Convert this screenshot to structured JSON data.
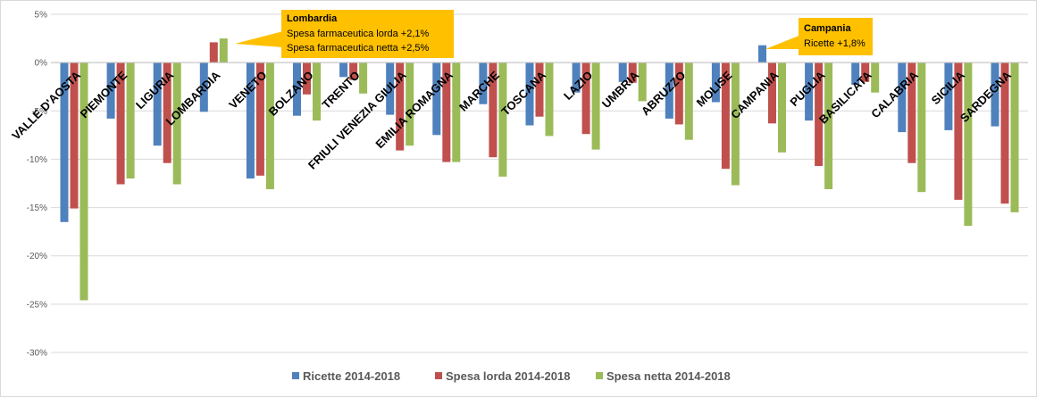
{
  "chart_data": {
    "type": "bar",
    "categories": [
      "VALLE D'AOSTA",
      "PIEMONTE",
      "LIGURIA",
      "LOMBARDIA",
      "VENETO",
      "BOLZANO",
      "TRENTO",
      "FRIULI VENEZIA GIULIA",
      "EMILIA ROMAGNA",
      "MARCHE",
      "TOSCANA",
      "LAZIO",
      "UMBRIA",
      "ABRUZZO",
      "MOLISE",
      "CAMPANIA",
      "PUGLIA",
      "BASILICATA",
      "CALABRIA",
      "SICILIA",
      "SARDEGNA"
    ],
    "series": [
      {
        "name": "Ricette 2014-2018",
        "color": "#4f81bd",
        "values": [
          -16.5,
          -5.8,
          -8.6,
          -5.1,
          -12.0,
          -5.5,
          -1.5,
          -5.4,
          -7.5,
          -4.3,
          -6.5,
          -3.1,
          -2.0,
          -5.8,
          -4.1,
          1.8,
          -6.0,
          -2.3,
          -7.2,
          -7.0,
          -6.6
        ]
      },
      {
        "name": "Spesa lorda 2014-2018",
        "color": "#c0504d",
        "values": [
          -15.1,
          -12.6,
          -10.4,
          2.1,
          -11.7,
          -3.3,
          -1.8,
          -9.1,
          -10.3,
          -9.8,
          -5.6,
          -7.4,
          -2.1,
          -6.4,
          -11.0,
          -6.3,
          -10.7,
          -2.0,
          -10.4,
          -14.2,
          -14.6
        ]
      },
      {
        "name": "Spesa netta 2014-2018",
        "color": "#9bbb59",
        "values": [
          -24.6,
          -12.0,
          -12.6,
          2.5,
          -13.1,
          -6.0,
          -3.2,
          -8.6,
          -10.3,
          -11.8,
          -7.6,
          -9.0,
          -4.0,
          -8.0,
          -12.7,
          -9.3,
          -13.1,
          -3.1,
          -13.4,
          -16.9,
          -15.5
        ]
      }
    ],
    "yticks": [
      "5%",
      "0%",
      "-5%",
      "-10%",
      "-15%",
      "-20%",
      "-25%",
      "-30%"
    ],
    "ylim": [
      -30,
      5
    ],
    "legend": "bottom",
    "annotations": [
      {
        "region": "Lombardia",
        "lines": [
          "Spesa farmaceutica lorda +2,1%",
          "Spesa farmaceutica netta +2,5%"
        ]
      },
      {
        "region": "Campania",
        "lines": [
          "Ricette +1,8%"
        ]
      }
    ]
  }
}
